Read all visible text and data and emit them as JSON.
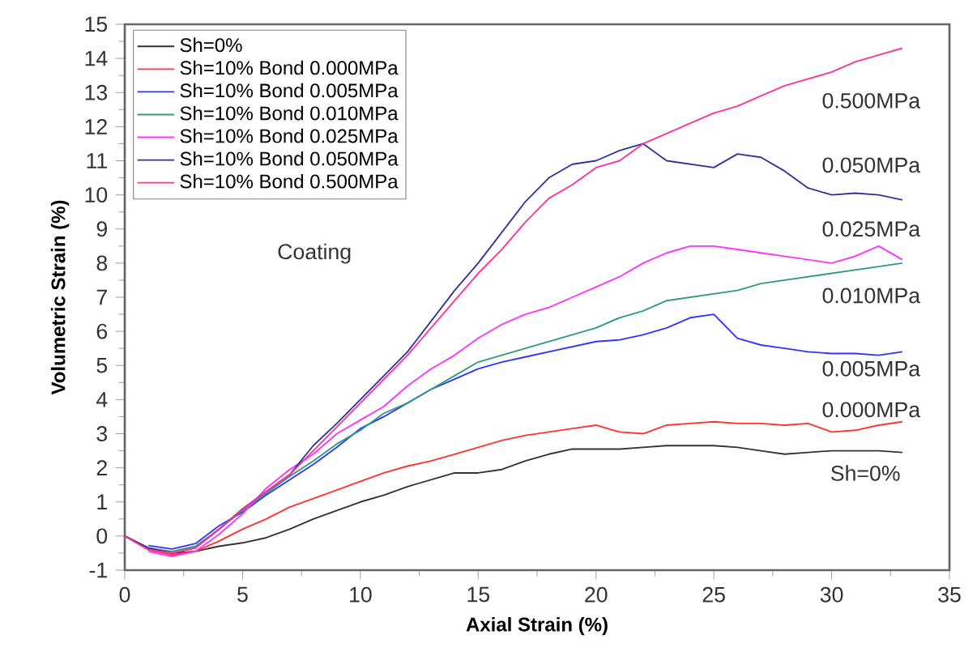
{
  "chart_data": {
    "type": "line",
    "xlabel": "Axial Strain (%)",
    "ylabel": "Volumetric Strain (%)",
    "x": [
      0,
      1,
      2,
      3,
      4,
      5,
      6,
      7,
      8,
      9,
      10,
      11,
      12,
      13,
      14,
      15,
      16,
      17,
      18,
      19,
      20,
      21,
      22,
      23,
      24,
      25,
      26,
      27,
      28,
      29,
      30,
      31,
      32,
      33
    ],
    "xlim": [
      0,
      35
    ],
    "xticks": [
      0,
      5,
      10,
      15,
      20,
      25,
      30,
      35
    ],
    "ylim": [
      -1,
      15
    ],
    "yticks": [
      -1,
      0,
      1,
      2,
      3,
      4,
      5,
      6,
      7,
      8,
      9,
      10,
      11,
      12,
      13,
      14,
      15
    ],
    "grid": false,
    "legend": "top left",
    "marker": "none",
    "line_style": "solid",
    "series": [
      {
        "name": "Sh=0%",
        "color": "#333333",
        "values": [
          0,
          -0.35,
          -0.5,
          -0.45,
          -0.3,
          -0.2,
          -0.05,
          0.2,
          0.5,
          0.75,
          1.0,
          1.2,
          1.45,
          1.65,
          1.85,
          1.85,
          1.95,
          2.2,
          2.4,
          2.55,
          2.55,
          2.55,
          2.6,
          2.65,
          2.65,
          2.65,
          2.6,
          2.5,
          2.4,
          2.45,
          2.5,
          2.5,
          2.5,
          2.45
        ]
      },
      {
        "name": "Sh=10% Bond 0.000MPa",
        "color": "#ff3333",
        "values": [
          0,
          -0.4,
          -0.55,
          -0.45,
          -0.15,
          0.2,
          0.5,
          0.85,
          1.1,
          1.35,
          1.6,
          1.85,
          2.05,
          2.2,
          2.4,
          2.6,
          2.8,
          2.95,
          3.05,
          3.15,
          3.25,
          3.05,
          3.0,
          3.25,
          3.3,
          3.35,
          3.3,
          3.3,
          3.25,
          3.3,
          3.05,
          3.1,
          3.25,
          3.35
        ]
      },
      {
        "name": "Sh=10% Bond 0.005MPa",
        "color": "#3333ff",
        "values": [
          null,
          -0.28,
          -0.38,
          -0.22,
          0.3,
          0.7,
          1.2,
          1.65,
          2.1,
          2.6,
          3.15,
          3.5,
          3.9,
          4.3,
          4.6,
          4.9,
          5.1,
          5.25,
          5.4,
          5.55,
          5.7,
          5.75,
          5.9,
          6.1,
          6.4,
          6.5,
          5.8,
          5.6,
          5.5,
          5.4,
          5.35,
          5.35,
          5.3,
          5.4
        ]
      },
      {
        "name": "Sh=10% Bond 0.010MPa",
        "color": "#339980",
        "values": [
          0,
          -0.35,
          -0.45,
          -0.3,
          0.2,
          0.75,
          1.25,
          1.75,
          2.2,
          2.7,
          3.1,
          3.6,
          3.9,
          4.3,
          4.7,
          5.1,
          5.3,
          5.5,
          5.7,
          5.9,
          6.1,
          6.4,
          6.6,
          6.9,
          7.0,
          7.1,
          7.2,
          7.4,
          7.5,
          7.6,
          7.7,
          7.8,
          7.9,
          8.0
        ]
      },
      {
        "name": "Sh=10% Bond 0.025MPa",
        "color": "#ff33ff",
        "values": [
          null,
          -0.45,
          -0.6,
          -0.45,
          0.05,
          0.65,
          1.4,
          1.95,
          2.4,
          3.0,
          3.4,
          3.8,
          4.4,
          4.9,
          5.3,
          5.8,
          6.2,
          6.5,
          6.7,
          7.0,
          7.3,
          7.6,
          8.0,
          8.3,
          8.5,
          8.5,
          8.4,
          8.3,
          8.2,
          8.1,
          8.0,
          8.2,
          8.5,
          8.1
        ]
      },
      {
        "name": "Sh=10% Bond 0.050MPa",
        "color": "#333399",
        "values": [
          0,
          -0.35,
          -0.5,
          -0.35,
          0.2,
          0.8,
          1.3,
          1.8,
          2.65,
          3.3,
          4.0,
          4.7,
          5.4,
          6.3,
          7.2,
          8.0,
          8.9,
          9.8,
          10.5,
          10.9,
          11.0,
          11.3,
          11.5,
          11.0,
          10.9,
          10.8,
          11.2,
          11.1,
          10.7,
          10.2,
          10.0,
          10.05,
          10.0,
          9.85
        ]
      },
      {
        "name": "Sh=10% Bond 0.500MPa",
        "color": "#ff3399",
        "values": [
          0,
          -0.4,
          -0.5,
          -0.35,
          0.2,
          0.8,
          1.3,
          1.8,
          2.5,
          3.2,
          3.9,
          4.6,
          5.3,
          6.1,
          6.9,
          7.7,
          8.4,
          9.2,
          9.9,
          10.3,
          10.8,
          11.0,
          11.5,
          11.8,
          12.1,
          12.4,
          12.6,
          12.9,
          13.2,
          13.4,
          13.6,
          13.9,
          14.1,
          14.3
        ]
      }
    ],
    "annotations": [
      "Coating",
      "0.500MPa",
      "0.050MPa",
      "0.025MPa",
      "0.010MPa",
      "0.005MPa",
      "0.000MPa",
      "Sh=0%"
    ]
  }
}
